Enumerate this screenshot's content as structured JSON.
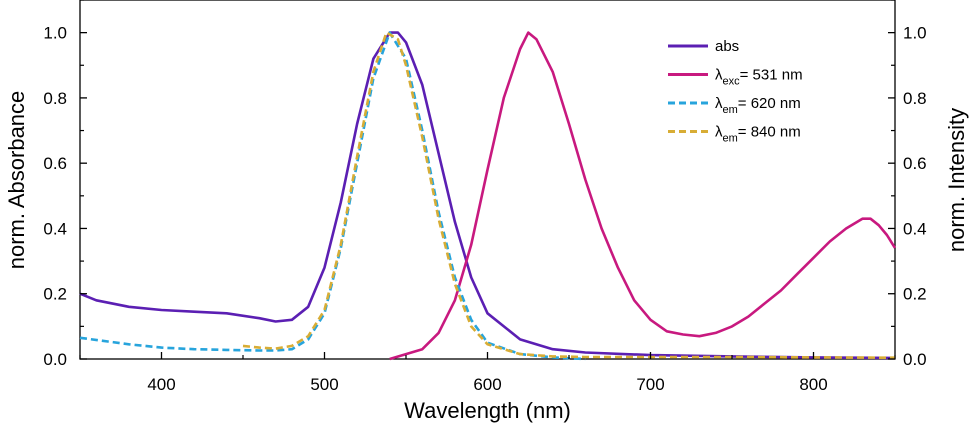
{
  "chart_data": {
    "type": "line",
    "xlabel": "Wavelength (nm)",
    "ylabel_left": "norm. Absorbance",
    "ylabel_right": "norm. Intensity",
    "xlim": [
      350,
      850
    ],
    "ylim": [
      0.0,
      1.1
    ],
    "x_ticks": [
      400,
      500,
      600,
      700,
      800
    ],
    "x_tick_labels": [
      "400",
      "500",
      "600",
      "700",
      "800"
    ],
    "y_ticks": [
      0.0,
      0.2,
      0.4,
      0.6,
      0.8,
      1.0
    ],
    "y_tick_labels": [
      "0.0",
      "0.2",
      "0.4",
      "0.6",
      "0.8",
      "1.0"
    ],
    "grid": false,
    "legend_position": "top-right",
    "series": [
      {
        "name": "abs",
        "legend_main": "abs",
        "legend_sub": "",
        "legend_tail": "",
        "color": "#5b1fb3",
        "dash": "solid",
        "x": [
          350,
          360,
          380,
          400,
          420,
          440,
          460,
          470,
          480,
          490,
          500,
          510,
          520,
          530,
          540,
          545,
          550,
          560,
          570,
          580,
          590,
          600,
          620,
          640,
          660,
          700,
          750,
          800,
          850
        ],
        "y": [
          0.2,
          0.18,
          0.16,
          0.15,
          0.145,
          0.14,
          0.125,
          0.115,
          0.12,
          0.16,
          0.28,
          0.48,
          0.72,
          0.92,
          1.0,
          1.0,
          0.97,
          0.84,
          0.63,
          0.42,
          0.25,
          0.14,
          0.06,
          0.03,
          0.02,
          0.012,
          0.008,
          0.005,
          0.003
        ]
      },
      {
        "name": "λexc= 531 nm",
        "legend_main": "λ",
        "legend_sub": "exc",
        "legend_tail": "= 531 nm",
        "color": "#c8197f",
        "dash": "solid",
        "x": [
          540,
          560,
          570,
          580,
          590,
          600,
          610,
          620,
          625,
          630,
          640,
          650,
          660,
          670,
          680,
          690,
          700,
          710,
          720,
          730,
          740,
          750,
          760,
          770,
          780,
          790,
          800,
          810,
          820,
          830,
          835,
          840,
          845,
          850
        ],
        "y": [
          0.0,
          0.03,
          0.08,
          0.18,
          0.35,
          0.58,
          0.8,
          0.95,
          1.0,
          0.98,
          0.88,
          0.72,
          0.55,
          0.4,
          0.28,
          0.18,
          0.12,
          0.085,
          0.075,
          0.07,
          0.08,
          0.1,
          0.13,
          0.17,
          0.21,
          0.26,
          0.31,
          0.36,
          0.4,
          0.43,
          0.43,
          0.41,
          0.38,
          0.34
        ]
      },
      {
        "name": "λem= 620 nm",
        "legend_main": "λ",
        "legend_sub": "em",
        "legend_tail": "= 620 nm",
        "color": "#27a4dc",
        "dash": "dashed",
        "x": [
          350,
          380,
          400,
          420,
          440,
          460,
          470,
          480,
          490,
          500,
          510,
          520,
          530,
          540,
          550,
          560,
          570,
          580,
          590,
          600,
          620,
          640,
          660
        ],
        "y": [
          0.065,
          0.045,
          0.035,
          0.03,
          0.028,
          0.026,
          0.026,
          0.03,
          0.06,
          0.14,
          0.34,
          0.6,
          0.86,
          1.0,
          0.92,
          0.7,
          0.45,
          0.25,
          0.12,
          0.05,
          0.015,
          0.005,
          0.0
        ]
      },
      {
        "name": "λem= 840 nm",
        "legend_main": "λ",
        "legend_sub": "em",
        "legend_tail": "= 840 nm",
        "color": "#d8ad35",
        "dash": "dashed",
        "x": [
          450,
          460,
          470,
          480,
          490,
          500,
          510,
          520,
          530,
          538,
          545,
          550,
          560,
          570,
          580,
          590,
          600,
          620,
          640,
          660,
          700,
          750,
          800,
          850
        ],
        "y": [
          0.04,
          0.035,
          0.032,
          0.04,
          0.07,
          0.15,
          0.35,
          0.62,
          0.88,
          1.0,
          0.98,
          0.9,
          0.68,
          0.43,
          0.23,
          0.1,
          0.045,
          0.015,
          0.008,
          0.006,
          0.006,
          0.006,
          0.005,
          0.004
        ]
      }
    ]
  }
}
